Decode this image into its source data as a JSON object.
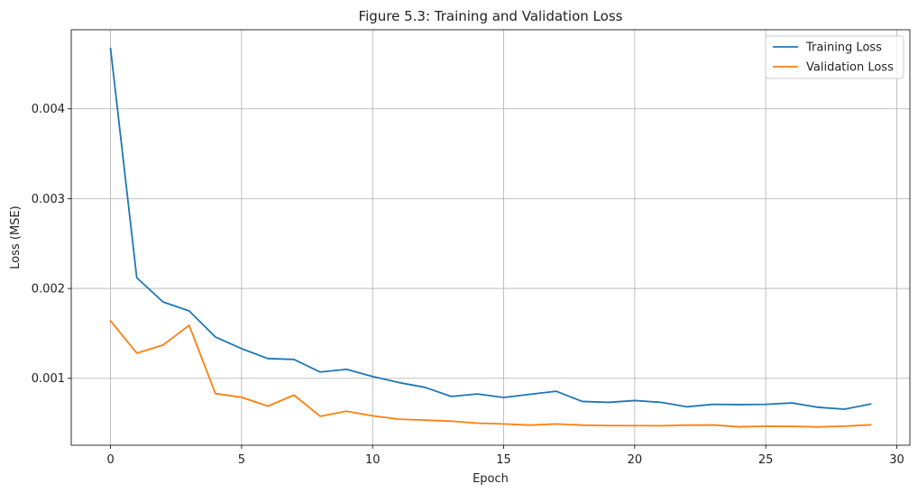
{
  "chart_data": {
    "type": "line",
    "title": "Figure 5.3: Training and Validation Loss",
    "xlabel": "Epoch",
    "ylabel": "Loss (MSE)",
    "xlim": [
      -1.5,
      30.5
    ],
    "ylim": [
      0.000255,
      0.00488
    ],
    "xticks": [
      0,
      5,
      10,
      15,
      20,
      25,
      30
    ],
    "xtick_labels": [
      "0",
      "5",
      "10",
      "15",
      "20",
      "25",
      "30"
    ],
    "yticks": [
      0.001,
      0.002,
      0.003,
      0.004
    ],
    "ytick_labels": [
      "0.001",
      "0.002",
      "0.003",
      "0.004"
    ],
    "grid": true,
    "legend_position": "top-right",
    "x": [
      0,
      1,
      2,
      3,
      4,
      5,
      6,
      7,
      8,
      9,
      10,
      11,
      12,
      13,
      14,
      15,
      16,
      17,
      18,
      19,
      20,
      21,
      22,
      23,
      24,
      25,
      26,
      27,
      28,
      29
    ],
    "series": [
      {
        "name": "Training Loss",
        "color": "#1f77b4",
        "values": [
          0.00467,
          0.00212,
          0.00185,
          0.00175,
          0.00146,
          0.00133,
          0.00122,
          0.00121,
          0.00107,
          0.0011,
          0.00102,
          0.000953,
          0.000899,
          0.000798,
          0.000826,
          0.000787,
          0.000822,
          0.000856,
          0.000742,
          0.000732,
          0.000752,
          0.000733,
          0.000683,
          0.00071,
          0.000707,
          0.00071,
          0.000726,
          0.000677,
          0.000656,
          0.000713
        ]
      },
      {
        "name": "Validation Loss",
        "color": "#ff7f0e",
        "values": [
          0.00164,
          0.00128,
          0.00137,
          0.00159,
          0.00083,
          0.000789,
          0.00069,
          0.000813,
          0.000577,
          0.000634,
          0.000582,
          0.000545,
          0.000535,
          0.000523,
          0.000501,
          0.000492,
          0.000479,
          0.000492,
          0.000479,
          0.000473,
          0.000473,
          0.000472,
          0.000479,
          0.00048,
          0.00046,
          0.000467,
          0.000465,
          0.000459,
          0.000467,
          0.000482
        ]
      }
    ]
  }
}
